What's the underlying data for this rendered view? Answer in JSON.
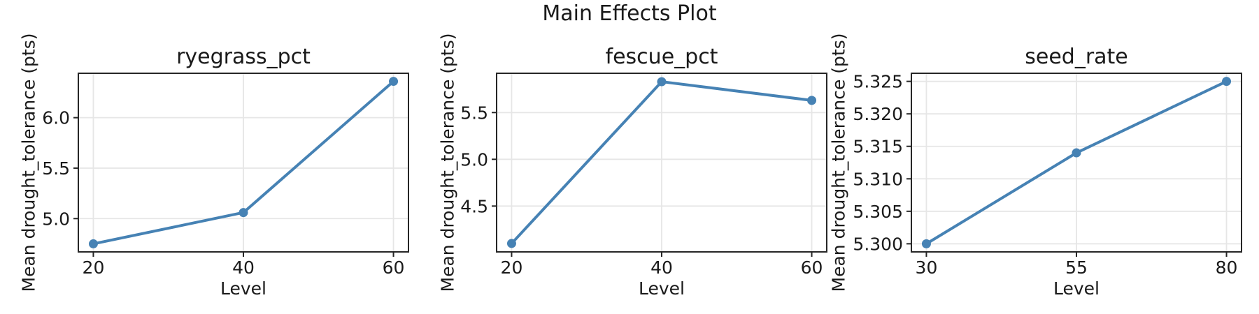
{
  "page": {
    "title": "Main Effects Plot"
  },
  "colors": {
    "line": "#4682b4",
    "spine": "#262626",
    "grid": "#e6e6e6",
    "text": "#1a1a1a",
    "background": "#ffffff"
  },
  "chart_data": [
    {
      "type": "line",
      "title": "ryegrass_pct",
      "xlabel": "Level",
      "ylabel": "Mean drought_tolerance (pts)",
      "x": [
        20,
        40,
        60
      ],
      "xtick_labels": [
        "20",
        "40",
        "60"
      ],
      "values": [
        4.75,
        5.06,
        6.36
      ],
      "ytick_values": [
        5.0,
        5.5,
        6.0
      ],
      "ytick_labels": [
        "5.0",
        "5.5",
        "6.0"
      ],
      "xlim": [
        18,
        62
      ],
      "ylim": [
        4.67,
        6.44
      ],
      "grid": true,
      "legend": false,
      "marker": "circle"
    },
    {
      "type": "line",
      "title": "fescue_pct",
      "xlabel": "Level",
      "ylabel": "Mean drought_tolerance (pts)",
      "x": [
        20,
        40,
        60
      ],
      "xtick_labels": [
        "20",
        "40",
        "60"
      ],
      "values": [
        4.1,
        5.83,
        5.63
      ],
      "ytick_values": [
        4.5,
        5.0,
        5.5
      ],
      "ytick_labels": [
        "4.5",
        "5.0",
        "5.5"
      ],
      "xlim": [
        18,
        62
      ],
      "ylim": [
        4.01,
        5.92
      ],
      "grid": true,
      "legend": false,
      "marker": "circle"
    },
    {
      "type": "line",
      "title": "seed_rate",
      "xlabel": "Level",
      "ylabel": "Mean drought_tolerance (pts)",
      "x": [
        30,
        55,
        80
      ],
      "xtick_labels": [
        "30",
        "55",
        "80"
      ],
      "values": [
        5.3,
        5.314,
        5.325
      ],
      "ytick_values": [
        5.3,
        5.305,
        5.31,
        5.315,
        5.32,
        5.325
      ],
      "ytick_labels": [
        "5.300",
        "5.305",
        "5.310",
        "5.315",
        "5.320",
        "5.325"
      ],
      "xlim": [
        27.5,
        82.5
      ],
      "ylim": [
        5.29875,
        5.32625
      ],
      "grid": true,
      "legend": false,
      "marker": "circle"
    }
  ]
}
